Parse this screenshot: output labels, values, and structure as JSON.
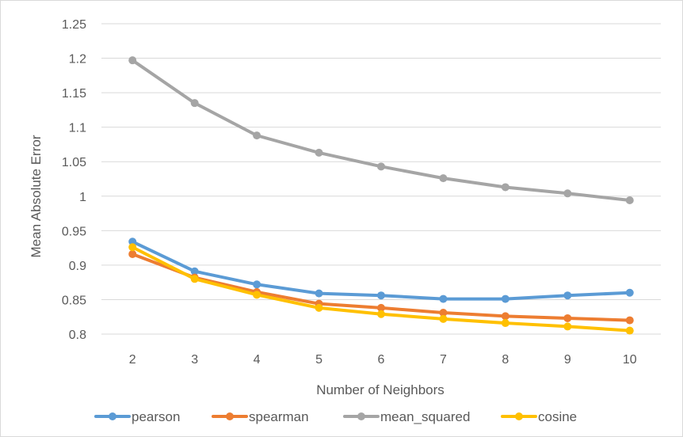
{
  "chart_data": {
    "type": "line",
    "title": "",
    "xlabel": "Number of Neighbors",
    "ylabel": "Mean Absolute Error",
    "categories": [
      "2",
      "3",
      "4",
      "5",
      "6",
      "7",
      "8",
      "9",
      "10"
    ],
    "ylim": [
      0.8,
      1.25
    ],
    "yticks": [
      "0.8",
      "0.85",
      "0.9",
      "0.95",
      "1",
      "1.05",
      "1.1",
      "1.15",
      "1.2",
      "1.25"
    ],
    "grid": true,
    "legend_position": "bottom",
    "series": [
      {
        "name": "pearson",
        "color": "#5b9bd5",
        "values": [
          0.934,
          0.891,
          0.872,
          0.859,
          0.856,
          0.851,
          0.851,
          0.856,
          0.86
        ]
      },
      {
        "name": "spearman",
        "color": "#ed7d31",
        "values": [
          0.916,
          0.882,
          0.861,
          0.844,
          0.838,
          0.831,
          0.826,
          0.823,
          0.82
        ]
      },
      {
        "name": "mean_squared",
        "color": "#a5a5a5",
        "values": [
          1.197,
          1.135,
          1.088,
          1.063,
          1.043,
          1.026,
          1.013,
          1.004,
          0.994
        ]
      },
      {
        "name": "cosine",
        "color": "#ffc000",
        "values": [
          0.926,
          0.88,
          0.857,
          0.838,
          0.829,
          0.822,
          0.816,
          0.811,
          0.805
        ]
      }
    ]
  }
}
